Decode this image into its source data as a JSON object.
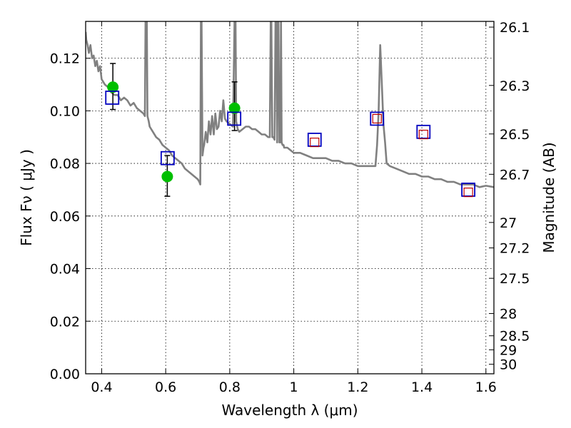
{
  "chart_data": {
    "type": "scatter",
    "xlabel": "Wavelength  λ (μm)",
    "ylabel": "Flux  Fν  ( μJy )",
    "y2label": "Magnitude (AB)",
    "xlim": [
      0.35,
      1.625
    ],
    "ylim": [
      0.0,
      0.134
    ],
    "grid": true,
    "x_ticks": [
      0.4,
      0.6,
      0.8,
      1.0,
      1.2,
      1.4,
      1.6
    ],
    "x_tick_labels": [
      "0.4",
      "0.6",
      "0.8",
      "1",
      "1.2",
      "1.4",
      "1.6"
    ],
    "y_ticks": [
      0.0,
      0.02,
      0.04,
      0.06,
      0.08,
      0.1,
      0.12
    ],
    "y_tick_labels": [
      "0.00",
      "0.02",
      "0.04",
      "0.06",
      "0.08",
      "0.10",
      "0.12"
    ],
    "y2_ticks": [
      {
        "label": "26.1",
        "mag": 26.1
      },
      {
        "label": "26.3",
        "mag": 26.3
      },
      {
        "label": "26.5",
        "mag": 26.5
      },
      {
        "label": "26.7",
        "mag": 26.7
      },
      {
        "label": "27",
        "mag": 27.0
      },
      {
        "label": "27.2",
        "mag": 27.2
      },
      {
        "label": "27.5",
        "mag": 27.5
      },
      {
        "label": "28",
        "mag": 28.0
      },
      {
        "label": "28.5",
        "mag": 28.5
      },
      {
        "label": "29",
        "mag": 29.0
      },
      {
        "label": "30",
        "mag": 30.0
      }
    ],
    "series": [
      {
        "kind": "line",
        "color": "#808080",
        "x": [
          0.35,
          0.352,
          0.356,
          0.36,
          0.365,
          0.37,
          0.375,
          0.38,
          0.385,
          0.39,
          0.395,
          0.4,
          0.41,
          0.42,
          0.43,
          0.44,
          0.45,
          0.46,
          0.47,
          0.48,
          0.49,
          0.5,
          0.51,
          0.52,
          0.53,
          0.535,
          0.537,
          0.539,
          0.541,
          0.543,
          0.545,
          0.547,
          0.55,
          0.56,
          0.57,
          0.58,
          0.59,
          0.6,
          0.61,
          0.62,
          0.63,
          0.64,
          0.65,
          0.66,
          0.67,
          0.68,
          0.69,
          0.7,
          0.705,
          0.708,
          0.71,
          0.712,
          0.715,
          0.718,
          0.72,
          0.725,
          0.73,
          0.735,
          0.74,
          0.745,
          0.75,
          0.755,
          0.76,
          0.765,
          0.77,
          0.775,
          0.78,
          0.785,
          0.79,
          0.8,
          0.81,
          0.815,
          0.818,
          0.82,
          0.825,
          0.83,
          0.84,
          0.85,
          0.86,
          0.87,
          0.88,
          0.89,
          0.9,
          0.91,
          0.92,
          0.925,
          0.928,
          0.93,
          0.933,
          0.936,
          0.94,
          0.943,
          0.946,
          0.948,
          0.95,
          0.952,
          0.955,
          0.958,
          0.96,
          0.962,
          0.965,
          0.968,
          0.97,
          0.975,
          0.98,
          0.99,
          1.0,
          1.02,
          1.04,
          1.06,
          1.08,
          1.1,
          1.12,
          1.14,
          1.16,
          1.18,
          1.2,
          1.22,
          1.24,
          1.25,
          1.255,
          1.26,
          1.265,
          1.27,
          1.275,
          1.28,
          1.285,
          1.29,
          1.3,
          1.32,
          1.34,
          1.36,
          1.38,
          1.4,
          1.42,
          1.44,
          1.46,
          1.48,
          1.5,
          1.52,
          1.54,
          1.56,
          1.58,
          1.6,
          1.625
        ],
        "y": [
          0.13,
          0.127,
          0.125,
          0.122,
          0.125,
          0.12,
          0.121,
          0.117,
          0.119,
          0.115,
          0.117,
          0.112,
          0.11,
          0.109,
          0.107,
          0.106,
          0.106,
          0.104,
          0.105,
          0.104,
          0.102,
          0.103,
          0.101,
          0.1,
          0.099,
          0.098,
          0.134,
          0.134,
          0.134,
          0.098,
          0.097,
          0.096,
          0.094,
          0.092,
          0.09,
          0.089,
          0.087,
          0.086,
          0.085,
          0.083,
          0.082,
          0.081,
          0.08,
          0.078,
          0.077,
          0.076,
          0.075,
          0.074,
          0.073,
          0.072,
          0.134,
          0.134,
          0.083,
          0.086,
          0.087,
          0.092,
          0.088,
          0.096,
          0.091,
          0.098,
          0.091,
          0.099,
          0.093,
          0.094,
          0.1,
          0.096,
          0.104,
          0.097,
          0.096,
          0.095,
          0.094,
          0.134,
          0.134,
          0.096,
          0.093,
          0.092,
          0.093,
          0.094,
          0.094,
          0.093,
          0.093,
          0.092,
          0.091,
          0.091,
          0.09,
          0.09,
          0.134,
          0.134,
          0.09,
          0.09,
          0.089,
          0.134,
          0.134,
          0.088,
          0.134,
          0.134,
          0.088,
          0.088,
          0.134,
          0.088,
          0.087,
          0.087,
          0.086,
          0.086,
          0.086,
          0.085,
          0.084,
          0.084,
          0.083,
          0.082,
          0.082,
          0.082,
          0.081,
          0.081,
          0.08,
          0.08,
          0.079,
          0.079,
          0.079,
          0.079,
          0.079,
          0.087,
          0.1,
          0.125,
          0.11,
          0.095,
          0.088,
          0.08,
          0.079,
          0.078,
          0.077,
          0.076,
          0.076,
          0.075,
          0.075,
          0.074,
          0.074,
          0.073,
          0.073,
          0.072,
          0.072,
          0.072,
          0.071,
          0.0715,
          0.071
        ]
      },
      {
        "kind": "points",
        "marker": "filled-circle",
        "color": "#00bf00",
        "x": [
          0.435,
          0.605,
          0.815
        ],
        "y": [
          0.109,
          0.075,
          0.101
        ],
        "yerr_low": [
          0.1005,
          0.0675,
          0.0925
        ],
        "yerr_high": [
          0.118,
          0.083,
          0.111
        ]
      },
      {
        "kind": "points",
        "marker": "open-square",
        "color": "#0000bf",
        "x": [
          0.433,
          0.606,
          0.814,
          1.065,
          1.26,
          1.405,
          1.545
        ],
        "y": [
          0.105,
          0.082,
          0.097,
          0.089,
          0.097,
          0.092,
          0.07
        ]
      },
      {
        "kind": "points",
        "marker": "small-open-square",
        "color": "#bf0000",
        "x": [
          1.065,
          1.26,
          1.405,
          1.545
        ],
        "y": [
          0.088,
          0.097,
          0.091,
          0.069
        ]
      }
    ]
  }
}
